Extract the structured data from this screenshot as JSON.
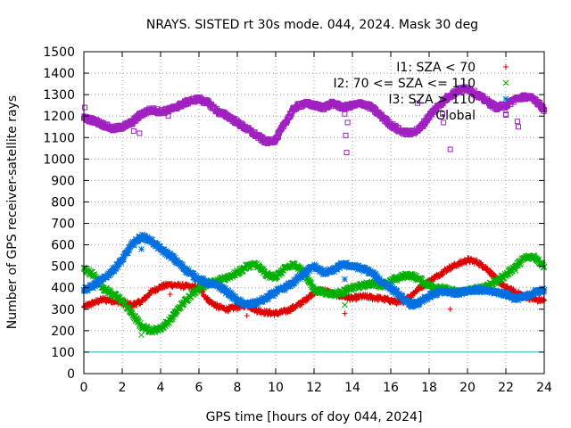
{
  "chart_data": {
    "type": "scatter",
    "title": "NRAYS. SISTED rt 30s mode. 044, 2024. Mask 30 deg",
    "xlabel": "GPS time [hours of doy 044, 2024]",
    "ylabel": "Number of GPS receiver-satellite rays",
    "xlim": [
      0,
      24
    ],
    "ylim": [
      0,
      1500
    ],
    "x_ticks": [
      0,
      2,
      4,
      6,
      8,
      10,
      12,
      14,
      16,
      18,
      20,
      22,
      24
    ],
    "y_ticks": [
      0,
      100,
      200,
      300,
      400,
      500,
      600,
      700,
      800,
      900,
      1000,
      1100,
      1200,
      1300,
      1400,
      1500
    ],
    "legend_position": "top-right",
    "reference_line": {
      "y": 100,
      "color": "#00c0c0"
    },
    "series": [
      {
        "name": "I1: SZA < 70",
        "marker": "plus",
        "color": "#e00000",
        "x": [
          0,
          0.5,
          1,
          1.5,
          2,
          2.5,
          3,
          3.5,
          4,
          4.5,
          5,
          5.5,
          6,
          6.5,
          7,
          7.5,
          8,
          8.5,
          9,
          9.5,
          10,
          10.5,
          11,
          11.5,
          12,
          12.5,
          13,
          13.5,
          14,
          14.5,
          15,
          15.5,
          16,
          16.5,
          17,
          17.5,
          18,
          18.5,
          19,
          19.5,
          20,
          20.5,
          21,
          21.5,
          22,
          22.5,
          23,
          23.5,
          24
        ],
        "values": [
          310,
          330,
          345,
          340,
          330,
          320,
          335,
          380,
          405,
          415,
          410,
          405,
          400,
          340,
          310,
          300,
          310,
          320,
          295,
          285,
          280,
          290,
          310,
          340,
          380,
          390,
          370,
          360,
          350,
          360,
          355,
          350,
          340,
          330,
          360,
          400,
          430,
          460,
          490,
          510,
          530,
          520,
          490,
          440,
          400,
          380,
          360,
          345,
          340
        ]
      },
      {
        "name": "I2: 70 <= SZA <= 110",
        "marker": "cross",
        "color": "#00b000",
        "x": [
          0,
          0.5,
          1,
          1.5,
          2,
          2.5,
          3,
          3.5,
          4,
          4.5,
          5,
          5.5,
          6,
          6.5,
          7,
          7.5,
          8,
          8.5,
          9,
          9.5,
          10,
          10.5,
          11,
          11.5,
          12,
          12.5,
          13,
          13.5,
          14,
          14.5,
          15,
          15.5,
          16,
          16.5,
          17,
          17.5,
          18,
          18.5,
          19,
          19.5,
          20,
          20.5,
          21,
          21.5,
          22,
          22.5,
          23,
          23.5,
          24
        ],
        "values": [
          490,
          460,
          400,
          370,
          340,
          280,
          220,
          200,
          210,
          250,
          310,
          360,
          400,
          420,
          430,
          450,
          470,
          500,
          510,
          460,
          450,
          490,
          510,
          470,
          390,
          380,
          370,
          380,
          400,
          410,
          420,
          410,
          430,
          450,
          460,
          440,
          410,
          400,
          390,
          380,
          385,
          395,
          410,
          430,
          460,
          500,
          540,
          545,
          500
        ]
      },
      {
        "name": "I3: SZA > 110",
        "marker": "star",
        "color": "#0070e0",
        "x": [
          0,
          0.5,
          1,
          1.5,
          2,
          2.5,
          3,
          3.5,
          4,
          4.5,
          5,
          5.5,
          6,
          6.5,
          7,
          7.5,
          8,
          8.5,
          9,
          9.5,
          10,
          10.5,
          11,
          11.5,
          12,
          12.5,
          13,
          13.5,
          14,
          14.5,
          15,
          15.5,
          16,
          16.5,
          17,
          17.5,
          18,
          18.5,
          19,
          19.5,
          20,
          20.5,
          21,
          21.5,
          22,
          22.5,
          23,
          23.5,
          24
        ],
        "values": [
          390,
          410,
          440,
          480,
          530,
          600,
          640,
          620,
          580,
          550,
          510,
          470,
          440,
          420,
          410,
          380,
          340,
          320,
          330,
          350,
          380,
          400,
          430,
          470,
          500,
          470,
          480,
          510,
          500,
          490,
          470,
          430,
          400,
          360,
          320,
          330,
          360,
          380,
          380,
          375,
          390,
          390,
          385,
          380,
          370,
          350,
          355,
          380,
          390
        ]
      },
      {
        "name": "Global",
        "marker": "square",
        "color": "#a020c0",
        "x": [
          0,
          0.5,
          1,
          1.5,
          2,
          2.5,
          3,
          3.5,
          4,
          4.5,
          5,
          5.5,
          6,
          6.5,
          7,
          7.5,
          8,
          8.5,
          9,
          9.5,
          10,
          10.5,
          11,
          11.5,
          12,
          12.5,
          13,
          13.5,
          14,
          14.5,
          15,
          15.5,
          16,
          16.5,
          17,
          17.5,
          18,
          18.5,
          19,
          19.5,
          20,
          20.5,
          21,
          21.5,
          22,
          22.5,
          23,
          23.5,
          24
        ],
        "values": [
          1190,
          1180,
          1160,
          1140,
          1150,
          1170,
          1210,
          1230,
          1220,
          1230,
          1250,
          1270,
          1280,
          1260,
          1220,
          1200,
          1170,
          1140,
          1110,
          1080,
          1090,
          1170,
          1240,
          1260,
          1250,
          1240,
          1260,
          1240,
          1250,
          1260,
          1240,
          1200,
          1160,
          1130,
          1120,
          1140,
          1200,
          1250,
          1290,
          1320,
          1330,
          1300,
          1270,
          1240,
          1250,
          1280,
          1290,
          1280,
          1230
        ]
      }
    ],
    "outliers": [
      {
        "series": "Global",
        "x": 0.05,
        "y": 1240
      },
      {
        "series": "Global",
        "x": 2.6,
        "y": 1130
      },
      {
        "series": "Global",
        "x": 2.9,
        "y": 1120
      },
      {
        "series": "Global",
        "x": 4.4,
        "y": 1200
      },
      {
        "series": "Global",
        "x": 13.6,
        "y": 1210
      },
      {
        "series": "Global",
        "x": 13.65,
        "y": 1110
      },
      {
        "series": "Global",
        "x": 13.7,
        "y": 1030
      },
      {
        "series": "Global",
        "x": 13.75,
        "y": 1170
      },
      {
        "series": "Global",
        "x": 17.4,
        "y": 1260
      },
      {
        "series": "Global",
        "x": 18.7,
        "y": 1210
      },
      {
        "series": "Global",
        "x": 18.75,
        "y": 1170
      },
      {
        "series": "Global",
        "x": 19.1,
        "y": 1045
      },
      {
        "series": "Global",
        "x": 22.0,
        "y": 1210
      },
      {
        "series": "Global",
        "x": 22.6,
        "y": 1175
      },
      {
        "series": "Global",
        "x": 22.65,
        "y": 1150
      },
      {
        "series": "I1: SZA < 70",
        "x": 4.5,
        "y": 370
      },
      {
        "series": "I1: SZA < 70",
        "x": 8.5,
        "y": 270
      },
      {
        "series": "I1: SZA < 70",
        "x": 13.6,
        "y": 280
      },
      {
        "series": "I1: SZA < 70",
        "x": 19.1,
        "y": 300
      },
      {
        "series": "I2: 70 <= SZA <= 110",
        "x": 3.0,
        "y": 180
      },
      {
        "series": "I2: 70 <= SZA <= 110",
        "x": 13.6,
        "y": 320
      },
      {
        "series": "I2: 70 <= SZA <= 110",
        "x": 22.5,
        "y": 480
      },
      {
        "series": "I3: SZA > 110",
        "x": 3.0,
        "y": 580
      },
      {
        "series": "I3: SZA > 110",
        "x": 13.6,
        "y": 440
      }
    ]
  }
}
